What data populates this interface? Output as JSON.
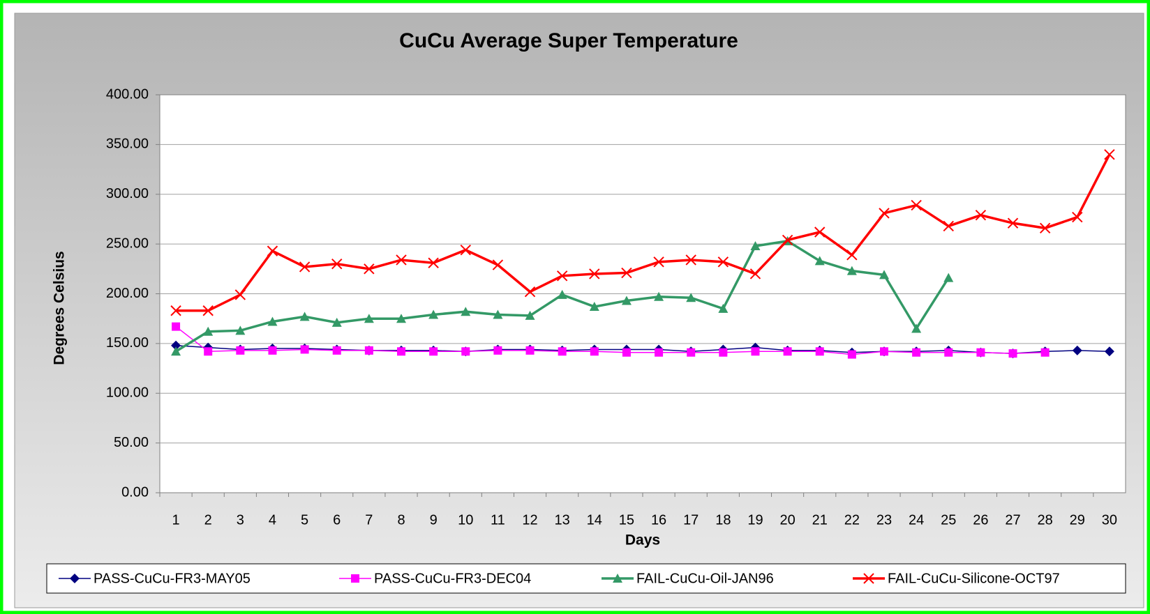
{
  "chart_data": {
    "type": "line",
    "title": "CuCu Average Super Temperature",
    "x_label": "Days",
    "y_label": "Degrees Celsius",
    "categories": [
      "1",
      "2",
      "3",
      "4",
      "5",
      "6",
      "7",
      "8",
      "9",
      "10",
      "11",
      "12",
      "13",
      "14",
      "15",
      "16",
      "17",
      "18",
      "19",
      "20",
      "21",
      "22",
      "23",
      "24",
      "25",
      "26",
      "27",
      "28",
      "29",
      "30"
    ],
    "ylim": [
      0,
      400
    ],
    "yticks": [
      {
        "value": 0,
        "label": "0.00"
      },
      {
        "value": 50,
        "label": "50.00"
      },
      {
        "value": 100,
        "label": "100.00"
      },
      {
        "value": 150,
        "label": "150.00"
      },
      {
        "value": 200,
        "label": "200.00"
      },
      {
        "value": 250,
        "label": "250.00"
      },
      {
        "value": 300,
        "label": "300.00"
      },
      {
        "value": 350,
        "label": "350.00"
      },
      {
        "value": 400,
        "label": "400.00"
      }
    ],
    "grid": true,
    "legend": "bottom",
    "series": [
      {
        "name": "PASS-CuCu-FR3-MAY05",
        "color": "#000080",
        "marker": "diamond",
        "values": [
          148,
          146,
          144,
          145,
          145,
          144,
          143,
          143,
          143,
          142,
          144,
          144,
          143,
          144,
          144,
          144,
          142,
          144,
          146,
          143,
          143,
          141,
          142,
          142,
          143,
          141,
          140,
          142,
          143,
          142
        ]
      },
      {
        "name": "PASS-CuCu-FR3-DEC04",
        "color": "#ff00ff",
        "marker": "square",
        "values": [
          167,
          142,
          143,
          143,
          144,
          143,
          143,
          142,
          142,
          142,
          143,
          143,
          142,
          142,
          141,
          141,
          141,
          141,
          142,
          142,
          142,
          139,
          142,
          141,
          141,
          141,
          140,
          141,
          null,
          null
        ]
      },
      {
        "name": "FAIL-CuCu-Oil-JAN96",
        "color": "#339966",
        "marker": "triangle",
        "values": [
          142,
          162,
          163,
          172,
          177,
          171,
          175,
          175,
          179,
          182,
          179,
          178,
          199,
          187,
          193,
          197,
          196,
          185,
          248,
          253,
          233,
          223,
          219,
          165,
          216,
          null,
          null,
          null,
          null,
          null
        ]
      },
      {
        "name": "FAIL-CuCu-Silicone-OCT97",
        "color": "#ff0000",
        "marker": "x",
        "values": [
          183,
          183,
          199,
          243,
          227,
          230,
          225,
          234,
          231,
          244,
          229,
          202,
          218,
          220,
          221,
          232,
          234,
          232,
          220,
          254,
          262,
          239,
          281,
          289,
          268,
          279,
          271,
          266,
          277,
          340
        ]
      }
    ]
  }
}
